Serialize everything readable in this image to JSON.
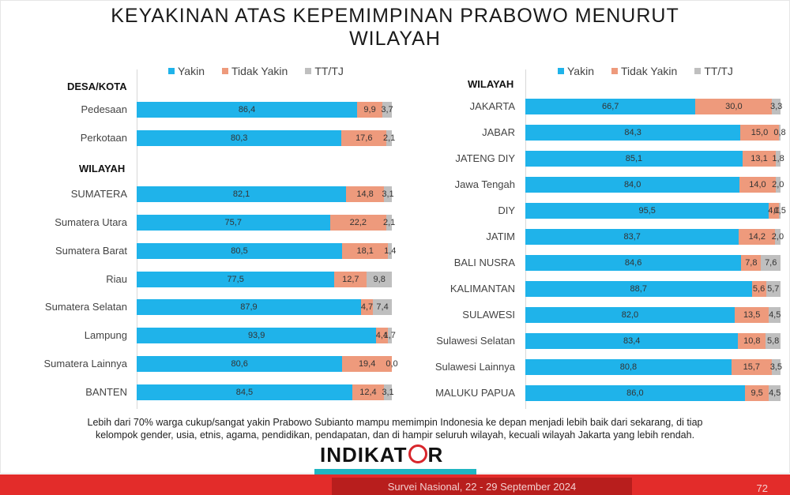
{
  "title_line1": "KEYAKINAN ATAS KEPEMIMPINAN PRABOWO MENURUT",
  "title_line2": "WILAYAH",
  "colors": {
    "yakin": "#1fb3ea",
    "tidak": "#ee9a7c",
    "tt": "#bfbfbf"
  },
  "legend": {
    "yakin": "Yakin",
    "tidak": "Tidak Yakin",
    "tt": "TT/TJ"
  },
  "left_panel": {
    "section_desa": "DESA/KOTA",
    "section_wilayah": "WILAYAH"
  },
  "right_panel": {
    "section_wilayah": "WILAYAH"
  },
  "chart_data": [
    {
      "type": "bar",
      "orientation": "horizontal",
      "stacked": true,
      "categories": [
        "Pedesaan",
        "Perkotaan",
        "SUMATERA",
        "Sumatera Utara",
        "Sumatera Barat",
        "Riau",
        "Sumatera Selatan",
        "Lampung",
        "Sumatera Lainnya",
        "BANTEN"
      ],
      "series": [
        {
          "name": "Yakin",
          "values": [
            86.4,
            80.3,
            82.1,
            75.7,
            80.5,
            77.5,
            87.9,
            93.9,
            80.6,
            84.5
          ]
        },
        {
          "name": "Tidak Yakin",
          "values": [
            9.9,
            17.6,
            14.8,
            22.2,
            18.1,
            12.7,
            4.7,
            4.4,
            19.4,
            12.4
          ]
        },
        {
          "name": "TT/TJ",
          "values": [
            3.7,
            2.1,
            3.1,
            2.1,
            1.4,
            9.8,
            7.4,
            1.7,
            0.0,
            3.1
          ]
        }
      ],
      "value_labels": {
        "Yakin": [
          "86,4",
          "80,3",
          "82,1",
          "75,7",
          "80,5",
          "77,5",
          "87,9",
          "93,9",
          "80,6",
          "84,5"
        ],
        "Tidak Yakin": [
          "9,9",
          "17,6",
          "14,8",
          "22,2",
          "18,1",
          "12,7",
          "4,7",
          "4,4",
          "19,4",
          "12,4"
        ],
        "TT/TJ": [
          "3,7",
          "2,1",
          "3,1",
          "2,1",
          "1,4",
          "9,8",
          "7,4",
          "1,7",
          "0,0",
          "3,1"
        ]
      },
      "xlim": [
        0,
        100
      ]
    },
    {
      "type": "bar",
      "orientation": "horizontal",
      "stacked": true,
      "categories": [
        "JAKARTA",
        "JABAR",
        "JATENG DIY",
        "Jawa Tengah",
        "DIY",
        "JATIM",
        "BALI NUSRA",
        "KALIMANTAN",
        "SULAWESI",
        "Sulawesi Selatan",
        "Sulawesi Lainnya",
        "MALUKU PAPUA"
      ],
      "series": [
        {
          "name": "Yakin",
          "values": [
            66.7,
            84.3,
            85.1,
            84.0,
            95.5,
            83.7,
            84.6,
            88.7,
            82.0,
            83.4,
            80.8,
            86.0
          ]
        },
        {
          "name": "Tidak Yakin",
          "values": [
            30.0,
            15.0,
            13.1,
            14.0,
            4.0,
            14.2,
            7.8,
            5.6,
            13.5,
            10.8,
            15.7,
            9.5
          ]
        },
        {
          "name": "TT/TJ",
          "values": [
            3.3,
            0.8,
            1.8,
            2.0,
            0.5,
            2.0,
            7.6,
            5.7,
            4.5,
            5.8,
            3.5,
            4.5
          ]
        }
      ],
      "value_labels": {
        "Yakin": [
          "66,7",
          "84,3",
          "85,1",
          "84,0",
          "95,5",
          "83,7",
          "84,6",
          "88,7",
          "82,0",
          "83,4",
          "80,8",
          "86,0"
        ],
        "Tidak Yakin": [
          "30,0",
          "15,0",
          "13,1",
          "14,0",
          "4,0",
          "14,2",
          "7,8",
          "5,6",
          "13,5",
          "10,8",
          "15,7",
          "9,5"
        ],
        "TT/TJ": [
          "3,3",
          "0,8",
          "1,8",
          "2,0",
          "0,5",
          "2,0",
          "7,6",
          "5,7",
          "4,5",
          "5,8",
          "3,5",
          "4,5"
        ]
      },
      "xlim": [
        0,
        100
      ]
    }
  ],
  "note_line1": "Lebih dari 70% warga cukup/sangat yakin Prabowo Subianto mampu memimpin Indonesia ke depan menjadi lebih baik dari sekarang, di tiap",
  "note_line2": "kelompok gender, usia, etnis, agama, pendidikan, pendapatan, dan di hampir seluruh wilayah, kecuali wilayah Jakarta yang lebih rendah.",
  "logo_text_a": "INDIKAT",
  "logo_text_b": "R",
  "footer_text": "Survei Nasional, 22 - 29 September 2024",
  "page_number": "72"
}
